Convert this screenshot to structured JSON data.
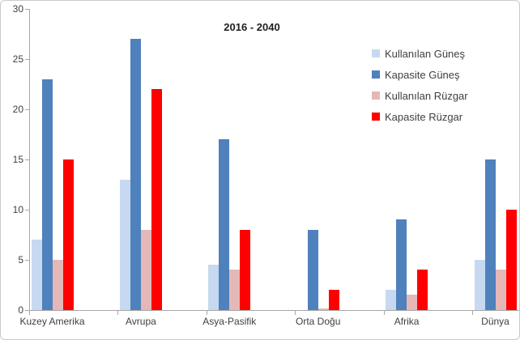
{
  "chart_data": {
    "type": "bar",
    "title": "2016 - 2040",
    "categories": [
      "Kuzey Amerika",
      "Avrupa",
      "Asya-Pasifik",
      "Orta Doğu",
      "Afrika",
      "Dünya"
    ],
    "series": [
      {
        "name": "Kullanılan Güneş",
        "color": "#C6D9F0",
        "values": [
          7,
          13,
          4.5,
          0,
          2,
          5
        ]
      },
      {
        "name": "Kapasite Güneş",
        "color": "#4F81BD",
        "values": [
          23,
          27,
          17,
          8,
          9,
          15
        ]
      },
      {
        "name": "Kullanılan Rüzgar",
        "color": "#E5B8B7",
        "values": [
          5,
          8,
          4,
          0.2,
          1.5,
          4
        ]
      },
      {
        "name": "Kapasite Rüzgar",
        "color": "#FF0000",
        "values": [
          15,
          22,
          8,
          2,
          4,
          10
        ]
      }
    ],
    "xlabel": "",
    "ylabel": "",
    "ylim": [
      0,
      30
    ],
    "yticks": [
      0,
      5,
      10,
      15,
      20,
      25,
      30
    ],
    "grid": false,
    "legend_position": "upper-right",
    "axis_color": "#a6a6a6",
    "text_color": "#3f3f3f"
  }
}
